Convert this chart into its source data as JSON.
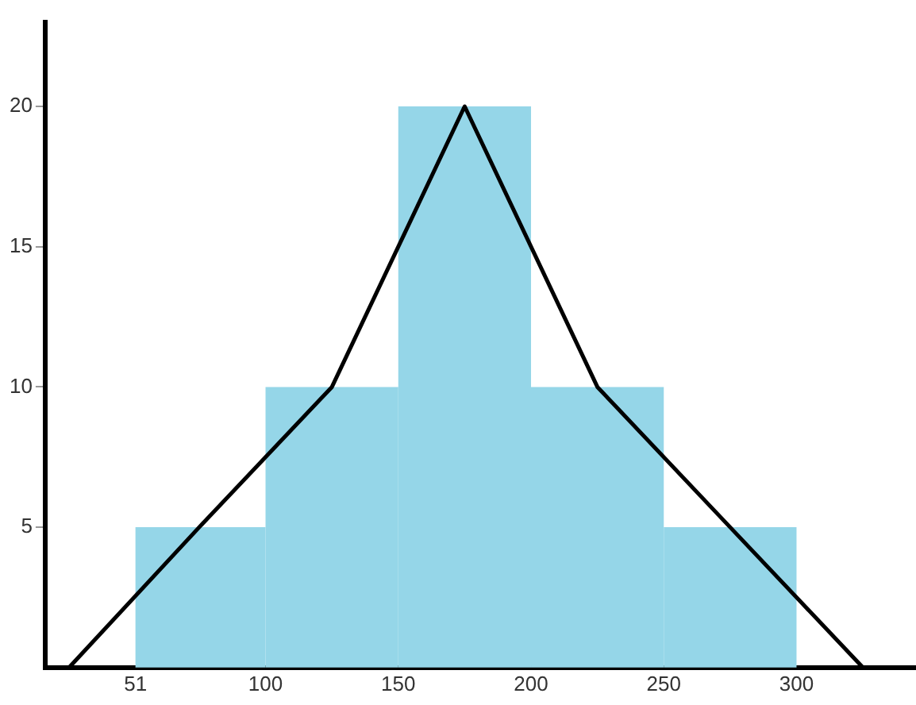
{
  "chart_data": {
    "type": "histogram",
    "xlim": [
      17,
      345
    ],
    "xticks": [
      51,
      100,
      150,
      200,
      250,
      300
    ],
    "ylim": [
      0,
      23
    ],
    "yticks": [
      5,
      10,
      15,
      20
    ],
    "grid": false,
    "legend": false,
    "marker": "none",
    "series": [
      {
        "color": "#95d6e8",
        "bins": [
          51,
          100,
          150,
          200,
          250,
          300
        ],
        "values": [
          5,
          10,
          20,
          10,
          5
        ]
      },
      {
        "type": "line",
        "color": "#000000",
        "x": [
          26,
          75,
          125,
          175,
          225,
          275,
          325
        ],
        "values": [
          0,
          5,
          10,
          20,
          10,
          5,
          0
        ]
      }
    ]
  }
}
